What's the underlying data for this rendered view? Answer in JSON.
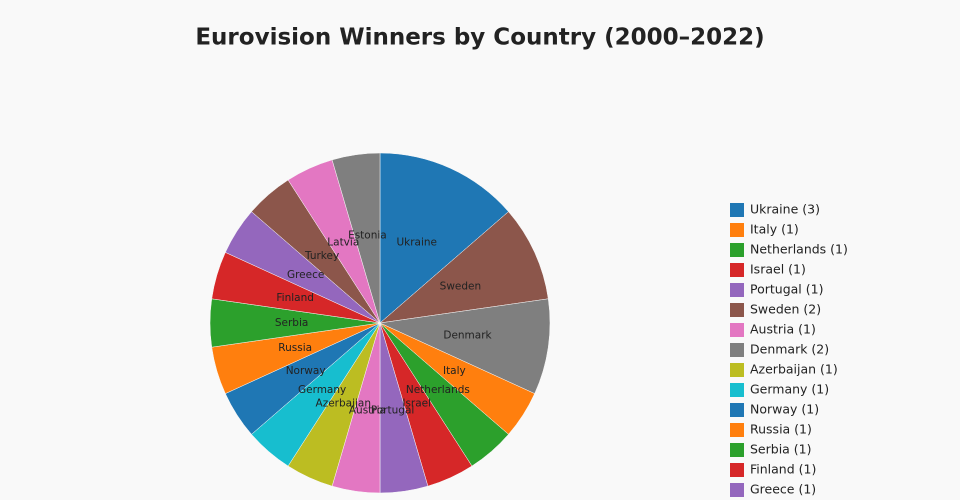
{
  "chart_data": {
    "type": "pie",
    "title": "Eurovision Winners by Country (2000–2022)",
    "categories": [
      "Ukraine",
      "Sweden",
      "Denmark",
      "Italy",
      "Netherlands",
      "Israel",
      "Portugal",
      "Austria",
      "Azerbaijan",
      "Germany",
      "Norway",
      "Russia",
      "Serbia",
      "Finland",
      "Greece",
      "Turkey",
      "Latvia",
      "Estonia"
    ],
    "values": [
      3,
      2,
      2,
      1,
      1,
      1,
      1,
      1,
      1,
      1,
      1,
      1,
      1,
      1,
      1,
      1,
      1,
      1
    ],
    "colors": [
      "#1f77b4",
      "#8c564b",
      "#7f7f7f",
      "#ff7f0e",
      "#2ca02c",
      "#d62728",
      "#9467bd",
      "#e377c2",
      "#bcbd22",
      "#17becf",
      "#1f77b4",
      "#ff7f0e",
      "#2ca02c",
      "#d62728",
      "#9467bd",
      "#8c564b",
      "#e377c2",
      "#7f7f7f"
    ],
    "legend": [
      {
        "label": "Ukraine (3)",
        "color": "#1f77b4"
      },
      {
        "label": "Italy (1)",
        "color": "#ff7f0e"
      },
      {
        "label": "Netherlands (1)",
        "color": "#2ca02c"
      },
      {
        "label": "Israel (1)",
        "color": "#d62728"
      },
      {
        "label": "Portugal (1)",
        "color": "#9467bd"
      },
      {
        "label": "Sweden (2)",
        "color": "#8c564b"
      },
      {
        "label": "Austria (1)",
        "color": "#e377c2"
      },
      {
        "label": "Denmark (2)",
        "color": "#7f7f7f"
      },
      {
        "label": "Azerbaijan (1)",
        "color": "#bcbd22"
      },
      {
        "label": "Germany (1)",
        "color": "#17becf"
      },
      {
        "label": "Norway (1)",
        "color": "#1f77b4"
      },
      {
        "label": "Russia (1)",
        "color": "#ff7f0e"
      },
      {
        "label": "Serbia (1)",
        "color": "#2ca02c"
      },
      {
        "label": "Finland (1)",
        "color": "#d62728"
      },
      {
        "label": "Greece (1)",
        "color": "#9467bd"
      }
    ]
  }
}
